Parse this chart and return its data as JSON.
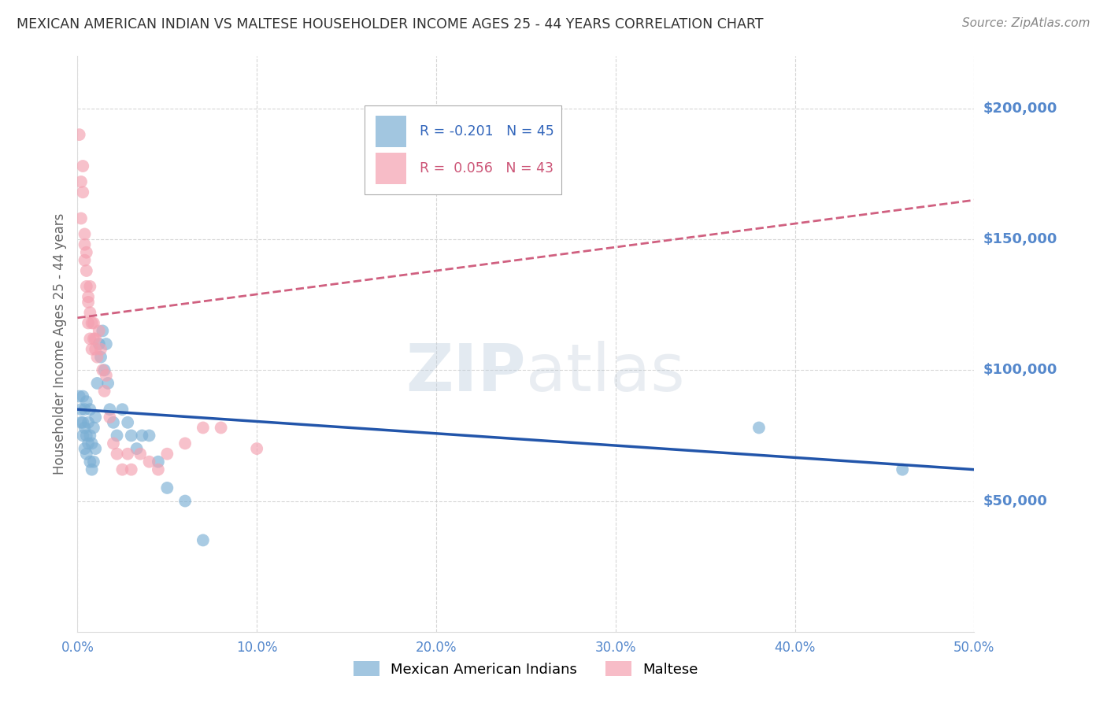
{
  "title": "MEXICAN AMERICAN INDIAN VS MALTESE HOUSEHOLDER INCOME AGES 25 - 44 YEARS CORRELATION CHART",
  "source": "Source: ZipAtlas.com",
  "ylabel_label": "Householder Income Ages 25 - 44 years",
  "x_min": 0.0,
  "x_max": 0.5,
  "y_min": 0,
  "y_max": 220000,
  "yticks": [
    50000,
    100000,
    150000,
    200000
  ],
  "xticks": [
    0.0,
    0.1,
    0.2,
    0.3,
    0.4,
    0.5
  ],
  "xtick_labels": [
    "0.0%",
    "10.0%",
    "20.0%",
    "30.0%",
    "40.0%",
    "50.0%"
  ],
  "blue_color": "#7BAFD4",
  "pink_color": "#F4A0B0",
  "blue_line_color": "#2255AA",
  "pink_line_color": "#D06080",
  "grid_color": "#CCCCCC",
  "axis_label_color": "#5588CC",
  "title_color": "#333333",
  "legend_blue_R": "-0.201",
  "legend_blue_N": "45",
  "legend_pink_R": "0.056",
  "legend_pink_N": "43",
  "watermark_color": "#C8D8EE",
  "blue_points_x": [
    0.001,
    0.002,
    0.002,
    0.003,
    0.003,
    0.003,
    0.004,
    0.004,
    0.004,
    0.005,
    0.005,
    0.005,
    0.006,
    0.006,
    0.007,
    0.007,
    0.007,
    0.008,
    0.008,
    0.009,
    0.009,
    0.01,
    0.01,
    0.011,
    0.012,
    0.013,
    0.014,
    0.015,
    0.016,
    0.017,
    0.018,
    0.02,
    0.022,
    0.025,
    0.028,
    0.03,
    0.033,
    0.036,
    0.04,
    0.045,
    0.05,
    0.06,
    0.07,
    0.38,
    0.46
  ],
  "blue_points_y": [
    90000,
    85000,
    80000,
    90000,
    80000,
    75000,
    85000,
    78000,
    70000,
    88000,
    75000,
    68000,
    80000,
    72000,
    85000,
    75000,
    65000,
    72000,
    62000,
    78000,
    65000,
    82000,
    70000,
    95000,
    110000,
    105000,
    115000,
    100000,
    110000,
    95000,
    85000,
    80000,
    75000,
    85000,
    80000,
    75000,
    70000,
    75000,
    75000,
    65000,
    55000,
    50000,
    35000,
    78000,
    62000
  ],
  "pink_points_x": [
    0.001,
    0.002,
    0.002,
    0.003,
    0.003,
    0.004,
    0.004,
    0.004,
    0.005,
    0.005,
    0.005,
    0.006,
    0.006,
    0.006,
    0.007,
    0.007,
    0.007,
    0.008,
    0.008,
    0.009,
    0.009,
    0.01,
    0.01,
    0.011,
    0.012,
    0.013,
    0.014,
    0.015,
    0.016,
    0.018,
    0.02,
    0.022,
    0.025,
    0.028,
    0.03,
    0.035,
    0.04,
    0.045,
    0.05,
    0.06,
    0.07,
    0.08,
    0.1
  ],
  "pink_points_y": [
    190000,
    172000,
    158000,
    168000,
    178000,
    152000,
    148000,
    142000,
    132000,
    138000,
    145000,
    126000,
    128000,
    118000,
    112000,
    122000,
    132000,
    118000,
    108000,
    112000,
    118000,
    112000,
    108000,
    105000,
    115000,
    108000,
    100000,
    92000,
    98000,
    82000,
    72000,
    68000,
    62000,
    68000,
    62000,
    68000,
    65000,
    62000,
    68000,
    72000,
    78000,
    78000,
    70000
  ],
  "blue_line_x": [
    0.0,
    0.5
  ],
  "blue_line_y": [
    85000,
    62000
  ],
  "pink_line_x": [
    0.0,
    0.5
  ],
  "pink_line_y": [
    120000,
    165000
  ]
}
